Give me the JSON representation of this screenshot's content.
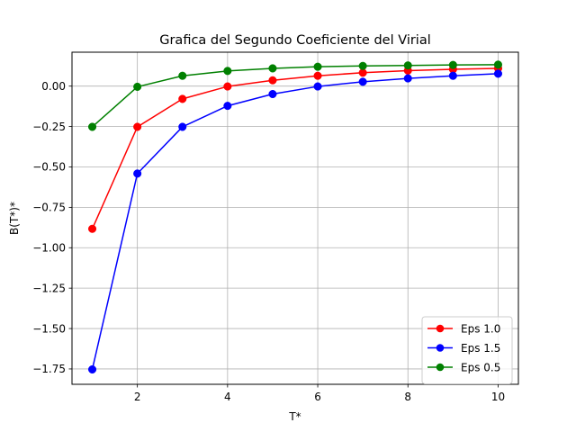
{
  "chart_data": {
    "type": "line",
    "title": "Grafica del Segundo Coeficiente del Virial",
    "xlabel": "T*",
    "ylabel": "B(T*)*",
    "x": [
      1,
      2,
      3,
      4,
      5,
      6,
      7,
      8,
      9,
      10
    ],
    "xlim": [
      0.55,
      10.45
    ],
    "ylim": [
      -1.845,
      0.21
    ],
    "xticks": [
      2,
      4,
      6,
      8,
      10
    ],
    "xtick_labels": [
      "2",
      "4",
      "6",
      "8",
      "10"
    ],
    "yticks": [
      0.0,
      -0.25,
      -0.5,
      -0.75,
      -1.0,
      -1.25,
      -1.5,
      -1.75
    ],
    "ytick_labels": [
      "0.00",
      "−0.25",
      "−0.50",
      "−0.75",
      "−1.00",
      "−1.25",
      "−1.50",
      "−1.75"
    ],
    "grid": true,
    "legend_position": "lower-right",
    "series": [
      {
        "name": "Eps 1.0",
        "color": "#ff0000",
        "values": [
          -0.883,
          -0.252,
          -0.079,
          -0.002,
          0.036,
          0.064,
          0.083,
          0.096,
          0.104,
          0.11
        ]
      },
      {
        "name": "Eps 1.5",
        "color": "#0000ff",
        "values": [
          -1.753,
          -0.541,
          -0.252,
          -0.122,
          -0.049,
          -0.002,
          0.027,
          0.048,
          0.064,
          0.077
        ]
      },
      {
        "name": "Eps 0.5",
        "color": "#008000",
        "values": [
          -0.252,
          -0.004,
          0.064,
          0.094,
          0.11,
          0.12,
          0.125,
          0.128,
          0.131,
          0.133
        ]
      }
    ]
  }
}
